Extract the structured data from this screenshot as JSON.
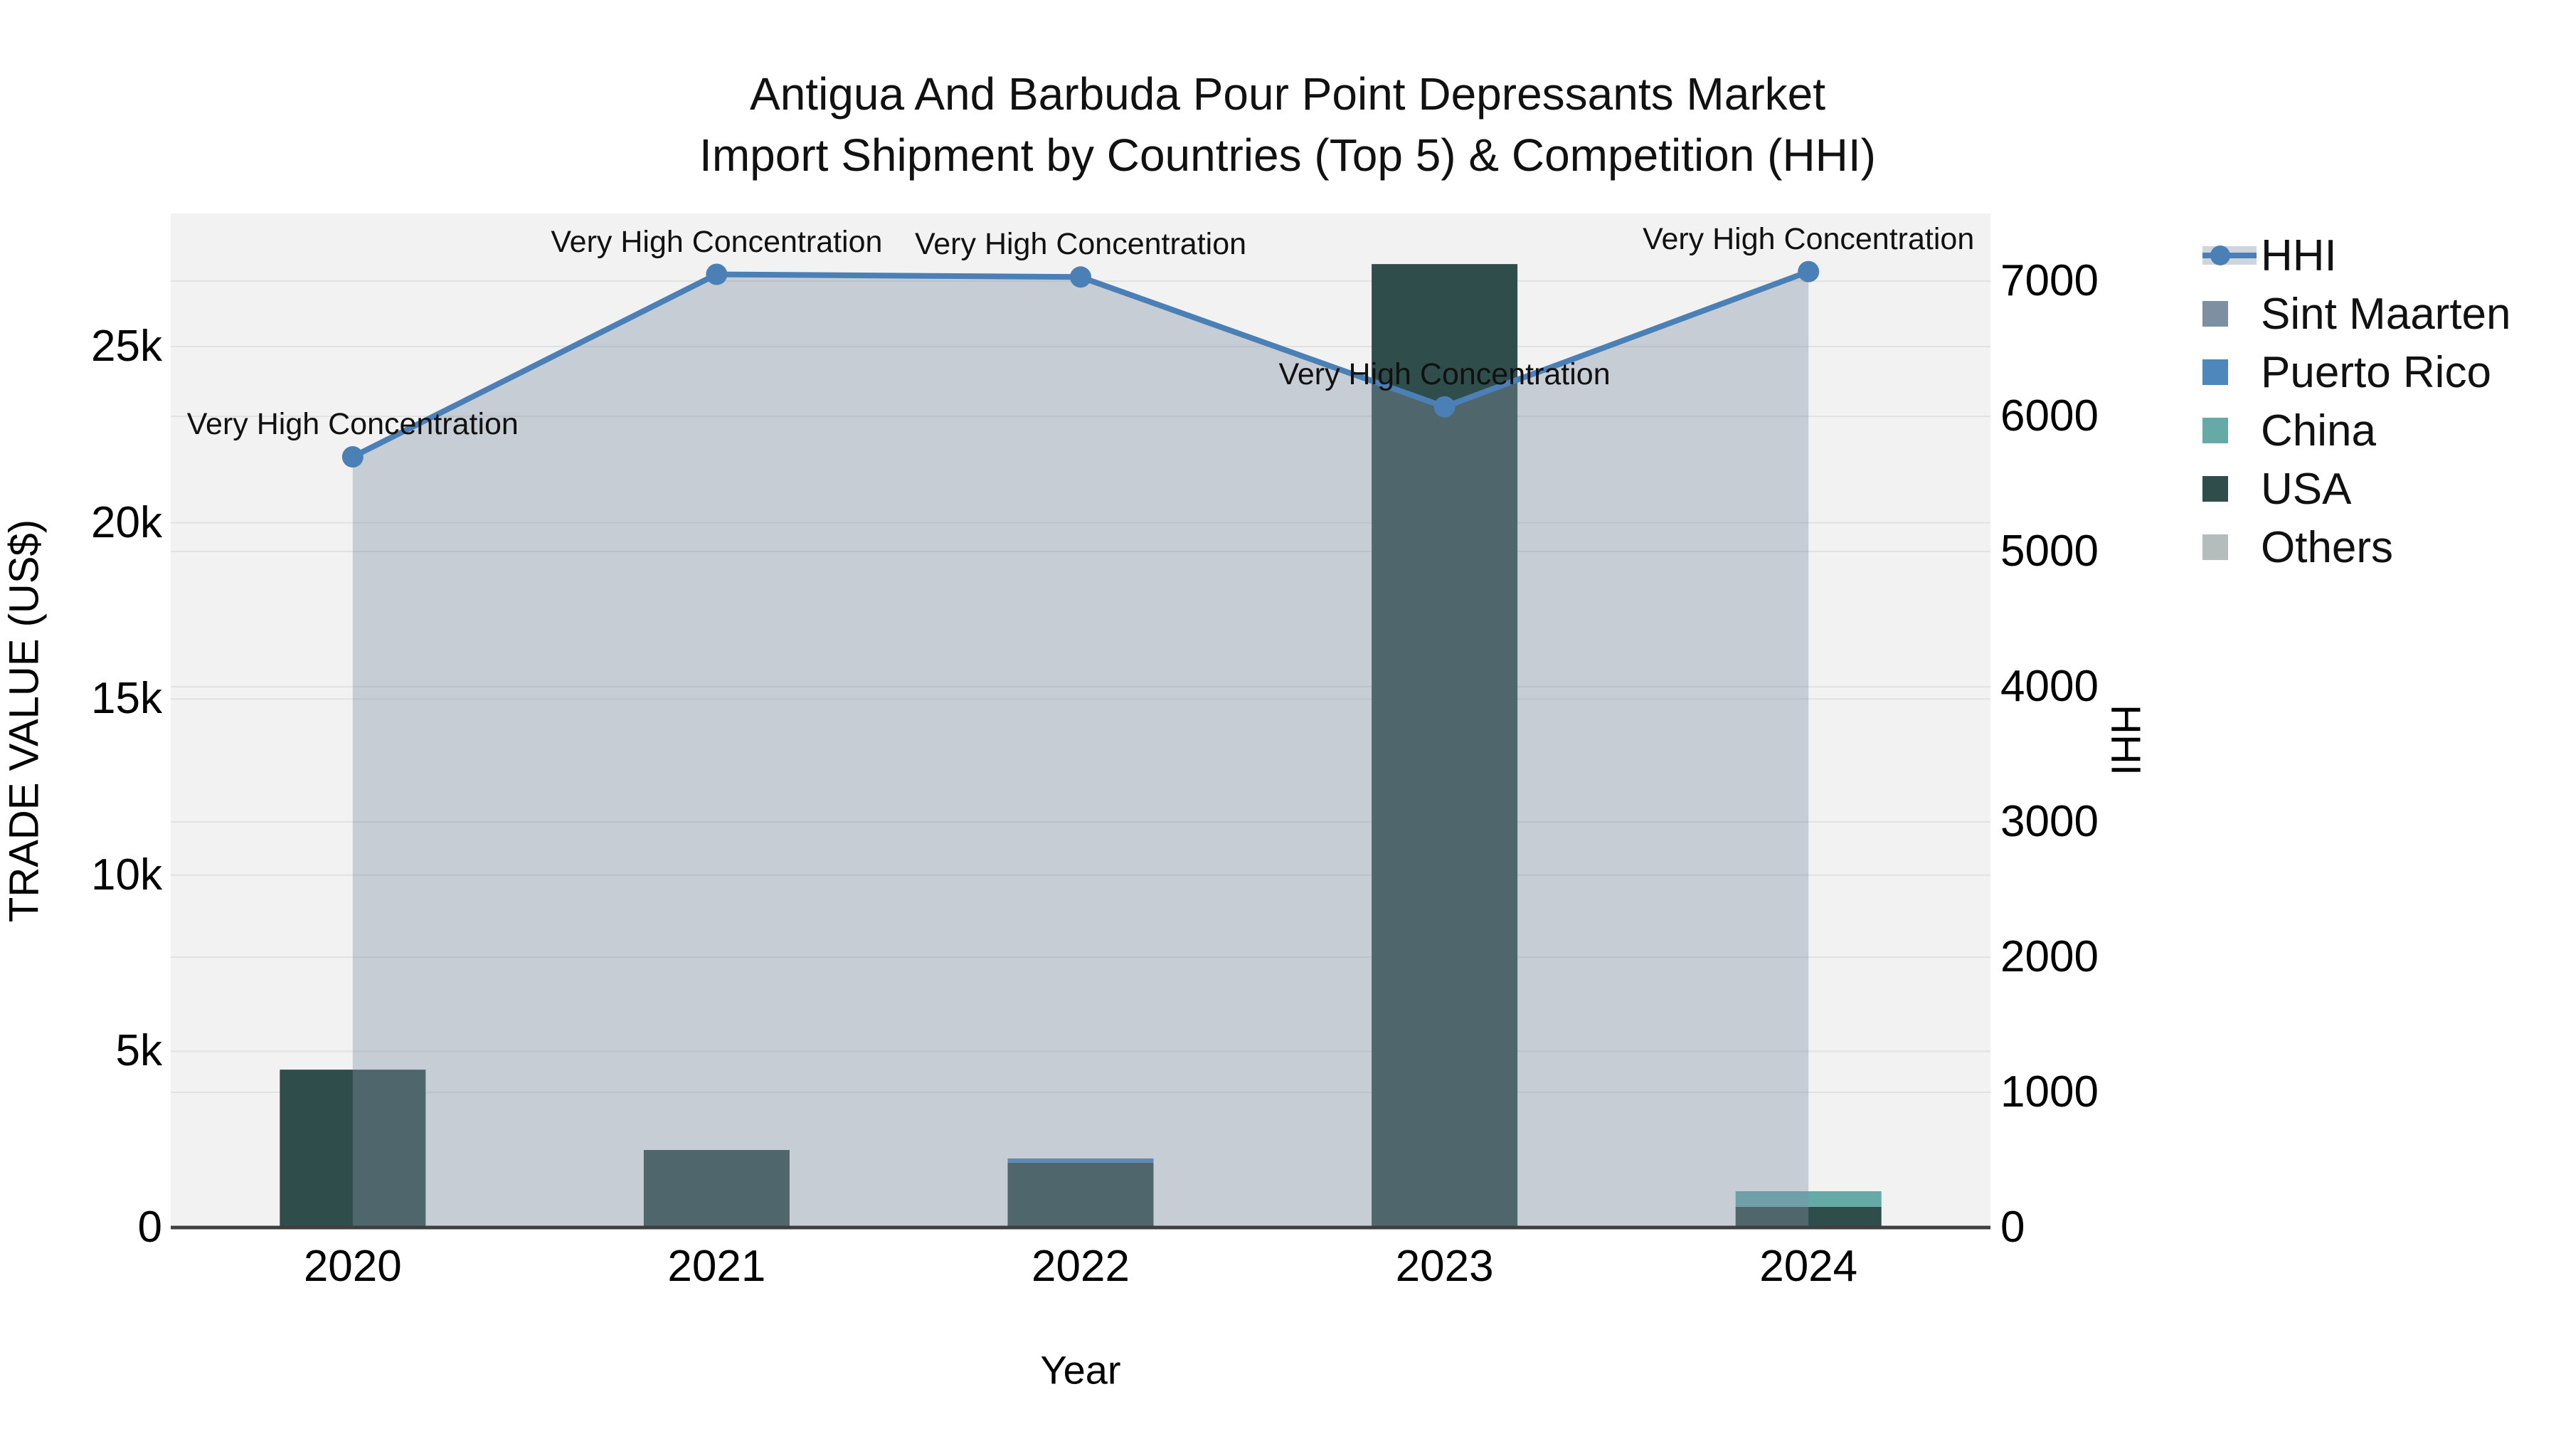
{
  "chart_data": {
    "type": "bar+line",
    "title": [
      "Antigua And Barbuda Pour Point Depressants Market",
      "Import Shipment by Countries (Top 5) & Competition (HHI)"
    ],
    "xlabel": "Year",
    "ylabel_left": "TRADE VALUE (US$)",
    "ylabel_right": "HHI",
    "categories": [
      "2020",
      "2021",
      "2022",
      "2023",
      "2024"
    ],
    "bar_series": [
      {
        "name": "Sint Maarten",
        "color": "#7d90a2",
        "values": [
          0,
          0,
          0,
          0,
          0
        ]
      },
      {
        "name": "Puerto Rico",
        "color": "#4d87bb",
        "values": [
          0,
          0,
          120,
          0,
          0
        ]
      },
      {
        "name": "China",
        "color": "#66aaa8",
        "values": [
          0,
          0,
          0,
          0,
          440
        ]
      },
      {
        "name": "USA",
        "color": "#2f4d4a",
        "values": [
          4480,
          2200,
          1840,
          27340,
          590
        ]
      },
      {
        "name": "Others",
        "color": "#b5bcbc",
        "values": [
          0,
          0,
          0,
          0,
          0
        ]
      }
    ],
    "stack_order_bottom_to_top": [
      "USA",
      "China",
      "Puerto Rico",
      "Sint Maarten",
      "Others"
    ],
    "line_series": {
      "name": "HHI",
      "axis": "right",
      "color": "#4a80b5",
      "area_fill": "rgba(130,145,165,0.38)",
      "values": [
        5700,
        7050,
        7030,
        6070,
        7070
      ],
      "point_annotations": [
        "Very High Concentration",
        "Very High Concentration",
        "Very High Concentration",
        "Very High Concentration",
        "Very High Concentration"
      ]
    },
    "y_left": {
      "lim": [
        0,
        28776
      ],
      "ticks": [
        {
          "label": "0",
          "v": 0
        },
        {
          "label": "5k",
          "v": 5000
        },
        {
          "label": "10k",
          "v": 10000
        },
        {
          "label": "15k",
          "v": 15000
        },
        {
          "label": "20k",
          "v": 20000
        },
        {
          "label": "25k",
          "v": 25000
        }
      ]
    },
    "y_right": {
      "lim": [
        0,
        7500
      ],
      "ticks": [
        {
          "label": "0",
          "v": 0
        },
        {
          "label": "1000",
          "v": 1000
        },
        {
          "label": "2000",
          "v": 2000
        },
        {
          "label": "3000",
          "v": 3000
        },
        {
          "label": "4000",
          "v": 4000
        },
        {
          "label": "5000",
          "v": 5000
        },
        {
          "label": "6000",
          "v": 6000
        },
        {
          "label": "7000",
          "v": 7000
        }
      ]
    },
    "legend_entries": [
      "HHI",
      "Sint Maarten",
      "Puerto Rico",
      "China",
      "USA",
      "Others"
    ],
    "legend_position": "right",
    "grid": true,
    "plot_bg": "#f2f2f2",
    "grid_color": "#e1e1e1",
    "axis_line_color": "#3f3f3f"
  }
}
